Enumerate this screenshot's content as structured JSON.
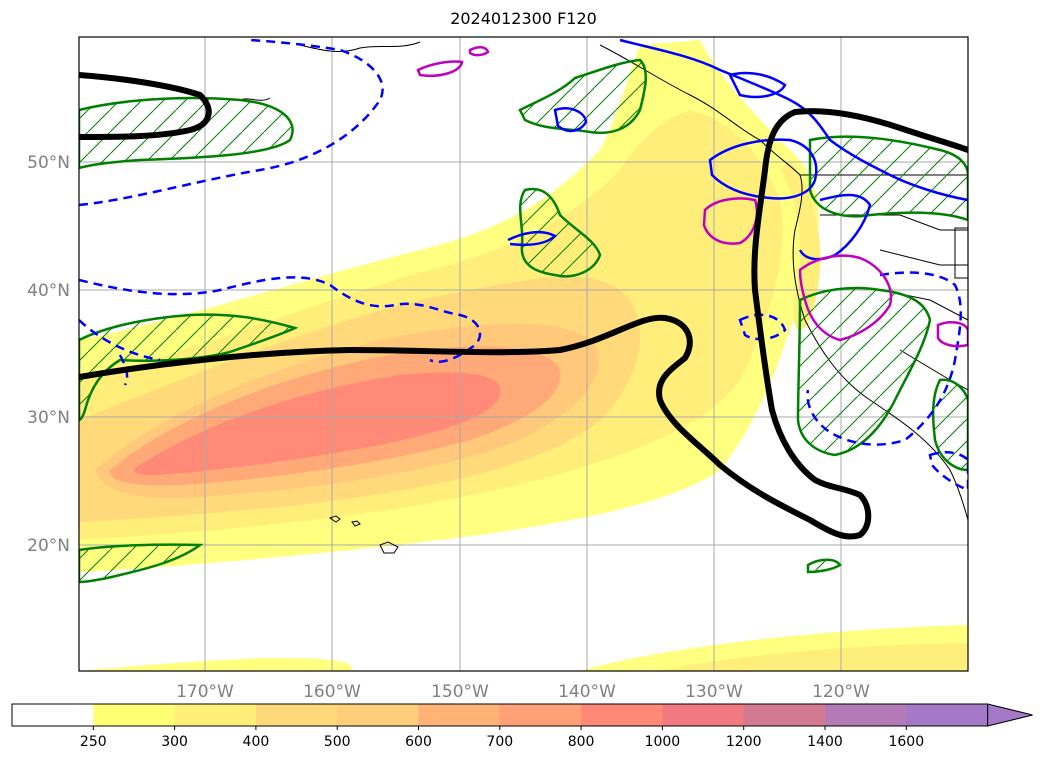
{
  "title": "2024012300 F120",
  "map": {
    "lat_labels": [
      "50°N",
      "40°N",
      "30°N",
      "20°N"
    ],
    "lon_labels": [
      "170°W",
      "160°W",
      "150°W",
      "140°W",
      "130°W",
      "120°W"
    ]
  },
  "colorbar": {
    "ticks": [
      "250",
      "300",
      "400",
      "500",
      "600",
      "700",
      "800",
      "1000",
      "1200",
      "1400",
      "1600"
    ],
    "colors": [
      "#ffffff",
      "#ffff73",
      "#ffef79",
      "#ffd979",
      "#ffce7a",
      "#ffb377",
      "#ffa077",
      "#ff8877",
      "#f07a80",
      "#d47a90",
      "#b47ab8",
      "#a47ac8"
    ],
    "extend": "max"
  },
  "colors": {
    "jet_line": "#000000",
    "green_hatched": "#008000",
    "blue_contour": "#0000ff",
    "magenta_contour": "#c000c0"
  }
}
